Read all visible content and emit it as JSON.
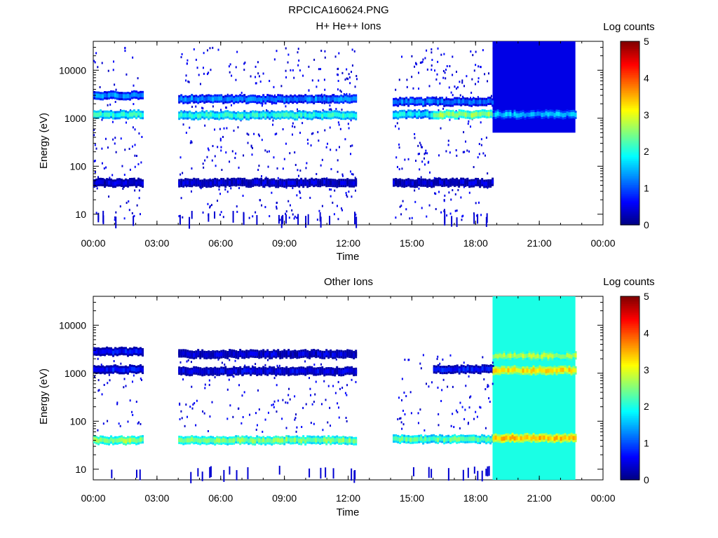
{
  "page_title": "RPCICA160624.PNG",
  "chart_data": [
    {
      "type": "heatmap",
      "title": "H+ He++ Ions",
      "xlabel": "Time",
      "ylabel": "Energy (eV)",
      "xticks": [
        "00:00",
        "03:00",
        "06:00",
        "09:00",
        "12:00",
        "15:00",
        "18:00",
        "21:00",
        "00:00"
      ],
      "xlim_hours": [
        0,
        24
      ],
      "yscale": "log",
      "ylim": [
        6,
        40000
      ],
      "yticks": [
        10,
        100,
        1000,
        10000
      ],
      "ytick_labels": [
        "10",
        "100",
        "1000",
        "10000"
      ],
      "colorbar": {
        "label": "Log counts",
        "range": [
          0,
          5
        ],
        "ticks": [
          "0",
          "1",
          "2",
          "3",
          "4",
          "5"
        ]
      },
      "grid": false,
      "data_gaps_hours": [
        [
          2.3,
          4.0
        ],
        [
          12.4,
          14.1
        ]
      ],
      "bands": [
        {
          "t0": 0.0,
          "t1": 2.3,
          "energy_eV": 3000,
          "log_counts": 1.3
        },
        {
          "t0": 0.0,
          "t1": 2.3,
          "energy_eV": 1200,
          "log_counts": 2.0
        },
        {
          "t0": 4.0,
          "t1": 12.4,
          "energy_eV": 2500,
          "log_counts": 1.3
        },
        {
          "t0": 4.0,
          "t1": 12.4,
          "energy_eV": 1150,
          "log_counts": 2.0
        },
        {
          "t0": 14.1,
          "t1": 18.8,
          "energy_eV": 2200,
          "log_counts": 1.2
        },
        {
          "t0": 14.1,
          "t1": 16.0,
          "energy_eV": 1200,
          "log_counts": 1.8
        },
        {
          "t0": 16.0,
          "t1": 18.8,
          "energy_eV": 1200,
          "log_counts": 2.6
        },
        {
          "t0": 0.0,
          "t1": 2.3,
          "energy_eV": 45,
          "log_counts": 0.4
        },
        {
          "t0": 4.0,
          "t1": 12.4,
          "energy_eV": 45,
          "log_counts": 0.4
        },
        {
          "t0": 14.1,
          "t1": 18.8,
          "energy_eV": 45,
          "log_counts": 0.4
        }
      ],
      "fill_regions": [
        {
          "t0": 18.8,
          "t1": 22.7,
          "e_min": 500,
          "e_max": 40000,
          "log_counts": 0.5
        },
        {
          "t0": 18.8,
          "t1": 22.7,
          "energy_eV": 1200,
          "log_counts": 1.5
        }
      ]
    },
    {
      "type": "heatmap",
      "title": "Other Ions",
      "xlabel": "Time",
      "ylabel": "Energy (eV)",
      "xticks": [
        "00:00",
        "03:00",
        "06:00",
        "09:00",
        "12:00",
        "15:00",
        "18:00",
        "21:00",
        "00:00"
      ],
      "xlim_hours": [
        0,
        24
      ],
      "yscale": "log",
      "ylim": [
        6,
        40000
      ],
      "yticks": [
        10,
        100,
        1000,
        10000
      ],
      "ytick_labels": [
        "10",
        "100",
        "1000",
        "10000"
      ],
      "colorbar": {
        "label": "Log counts",
        "range": [
          0,
          5
        ],
        "ticks": [
          "0",
          "1",
          "2",
          "3",
          "4",
          "5"
        ]
      },
      "grid": false,
      "data_gaps_hours": [
        [
          2.3,
          4.0
        ],
        [
          12.4,
          14.1
        ]
      ],
      "bands": [
        {
          "t0": 0.0,
          "t1": 2.3,
          "energy_eV": 2800,
          "log_counts": 0.6
        },
        {
          "t0": 0.0,
          "t1": 2.3,
          "energy_eV": 1200,
          "log_counts": 0.7
        },
        {
          "t0": 4.0,
          "t1": 12.4,
          "energy_eV": 2500,
          "log_counts": 0.4
        },
        {
          "t0": 4.0,
          "t1": 12.4,
          "energy_eV": 1100,
          "log_counts": 0.5
        },
        {
          "t0": 16.0,
          "t1": 18.8,
          "energy_eV": 1200,
          "log_counts": 0.7
        },
        {
          "t0": 0.0,
          "t1": 2.3,
          "energy_eV": 40,
          "log_counts": 2.6
        },
        {
          "t0": 4.0,
          "t1": 12.4,
          "energy_eV": 40,
          "log_counts": 2.5
        },
        {
          "t0": 14.1,
          "t1": 18.8,
          "energy_eV": 42,
          "log_counts": 2.3
        }
      ],
      "fill_regions": [
        {
          "t0": 18.8,
          "t1": 22.7,
          "e_min": 6,
          "e_max": 40000,
          "log_counts": 2.0
        },
        {
          "t0": 18.8,
          "t1": 22.7,
          "energy_eV": 2300,
          "log_counts": 2.7
        },
        {
          "t0": 18.8,
          "t1": 22.7,
          "energy_eV": 1150,
          "log_counts": 3.2
        },
        {
          "t0": 18.8,
          "t1": 22.7,
          "energy_eV": 45,
          "log_counts": 3.4
        }
      ]
    }
  ]
}
